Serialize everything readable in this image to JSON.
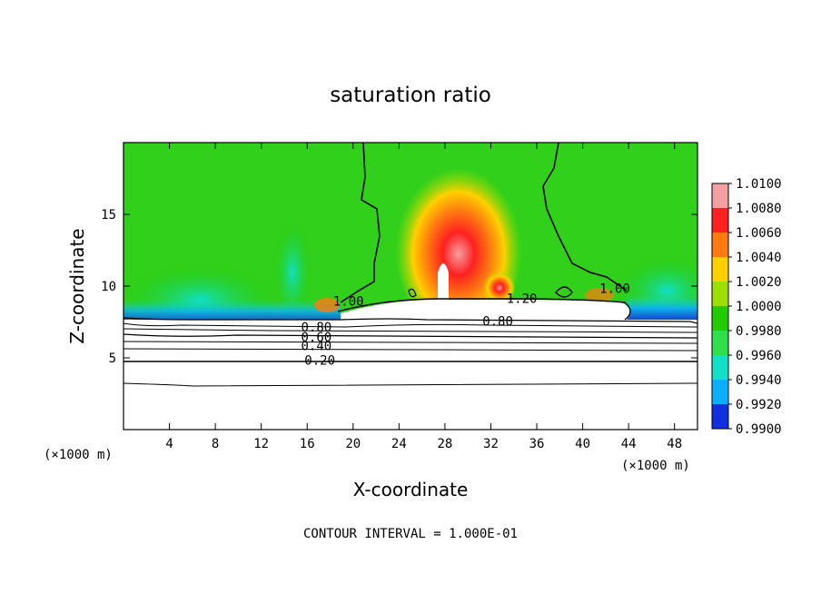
{
  "chart_data": {
    "type": "heatmap",
    "title": "saturation ratio",
    "xlabel": "X-coordinate",
    "ylabel": "Z-coordinate",
    "x_unit": "(×1000 m)",
    "x_unit_right": "(×1000 m)",
    "xlim": [
      0,
      50
    ],
    "ylim": [
      0,
      20
    ],
    "x_ticks": [
      4,
      8,
      12,
      16,
      20,
      24,
      28,
      32,
      36,
      40,
      44,
      48
    ],
    "y_ticks": [
      5,
      10,
      15
    ],
    "colorbar": {
      "labels": [
        "1.0100",
        "1.0080",
        "1.0060",
        "1.0040",
        "1.0020",
        "1.0000",
        "0.9980",
        "0.9960",
        "0.9940",
        "0.9920",
        "0.9900"
      ],
      "colors": [
        "#f4a0a0",
        "#ff2020",
        "#ff7a10",
        "#ffd000",
        "#9be000",
        "#22cc00",
        "#2ee04a",
        "#10e0c8",
        "#0ab0ff",
        "#1030e0",
        "#7a1fa8"
      ]
    },
    "contour_labels": [
      {
        "text": "1.00",
        "x": 19.6,
        "z": 8.7
      },
      {
        "text": "1.20",
        "x": 34.7,
        "z": 8.9
      },
      {
        "text": "1.00",
        "x": 42.8,
        "z": 9.6
      },
      {
        "text": "0.80",
        "x": 16.8,
        "z": 6.9
      },
      {
        "text": "0.60",
        "x": 16.8,
        "z": 6.2
      },
      {
        "text": "0.40",
        "x": 16.8,
        "z": 5.6
      },
      {
        "text": "0.80",
        "x": 32.6,
        "z": 7.3
      },
      {
        "text": "0.20",
        "x": 17.1,
        "z": 4.6
      }
    ],
    "contour_interval": "CONTOUR INTERVAL = 1.000E-01"
  }
}
